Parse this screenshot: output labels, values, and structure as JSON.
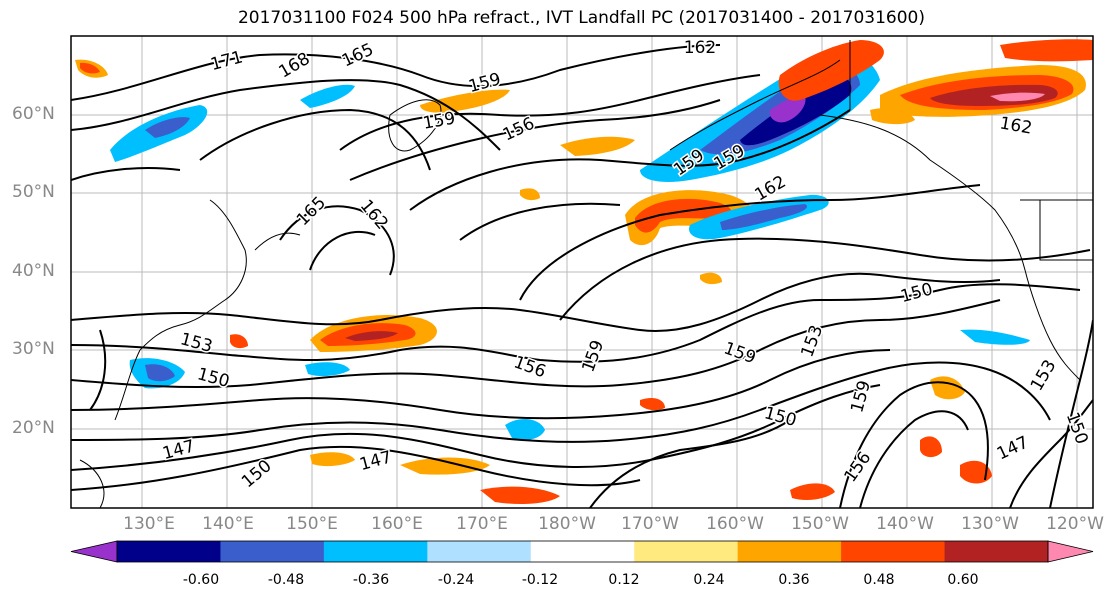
{
  "title": "2017031100 F024 500 hPa refract., IVT Landfall PC (2017031400 - 2017031600)",
  "lat_labels": [
    "60°N",
    "50°N",
    "40°N",
    "30°N",
    "20°N"
  ],
  "lon_labels": [
    "130°E",
    "140°E",
    "150°E",
    "160°E",
    "170°E",
    "180°W",
    "170°W",
    "160°W",
    "150°W",
    "140°W",
    "130°W",
    "120°W"
  ],
  "contour_labels": [
    "171",
    "168",
    "165",
    "162",
    "162",
    "159",
    "159",
    "159",
    "156",
    "159",
    "165",
    "162",
    "162",
    "153",
    "150",
    "159",
    "156",
    "159",
    "153",
    "150",
    "150",
    "153",
    "147",
    "147",
    "150",
    "147",
    "150",
    "156",
    "159"
  ],
  "colorbar": {
    "ticks": [
      "-0.60",
      "-0.48",
      "-0.36",
      "-0.24",
      "-0.12",
      "0.12",
      "0.24",
      "0.36",
      "0.48",
      "0.60"
    ],
    "colors": [
      "#9932cc",
      "#00008b",
      "#3a5fcd",
      "#00bfff",
      "#b0e0ff",
      "#ffffff",
      "#ffea80",
      "#ffa500",
      "#ff4500",
      "#b22222",
      "#ff88b0"
    ]
  }
}
